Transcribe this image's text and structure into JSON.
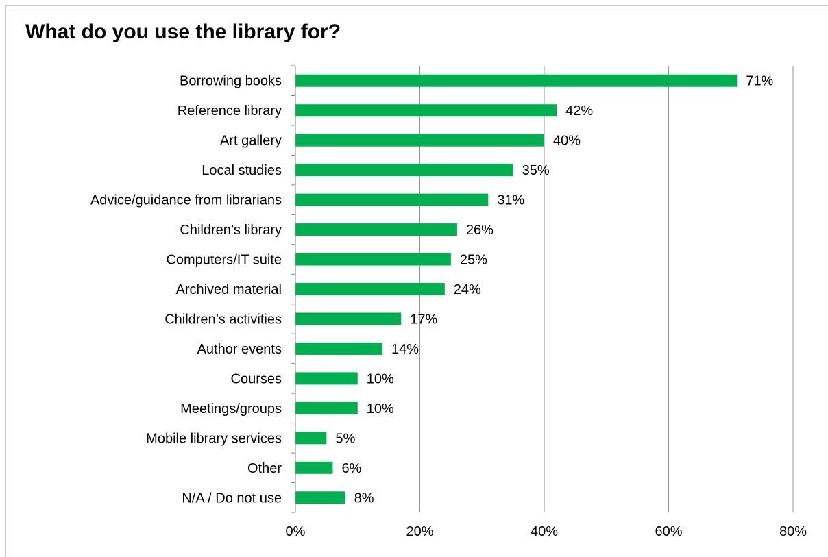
{
  "chart_data": {
    "type": "bar",
    "orientation": "horizontal",
    "title": "What do you use the library for?",
    "categories": [
      "Borrowing books",
      "Reference library",
      "Art gallery",
      "Local studies",
      "Advice/guidance from librarians",
      "Children’s library",
      "Computers/IT suite",
      "Archived material",
      "Children’s activities",
      "Author events",
      "Courses",
      "Meetings/groups",
      "Mobile library services",
      "Other",
      "N/A / Do not use"
    ],
    "values": [
      71,
      42,
      40,
      35,
      31,
      26,
      25,
      24,
      17,
      14,
      10,
      10,
      5,
      6,
      8
    ],
    "data_labels": [
      "71%",
      "42%",
      "40%",
      "35%",
      "31%",
      "26%",
      "25%",
      "24%",
      "17%",
      "14%",
      "10%",
      "10%",
      "5%",
      "6%",
      "8%"
    ],
    "xlim": [
      0,
      80
    ],
    "x_ticks": [
      0,
      20,
      40,
      60,
      80
    ],
    "x_tick_labels": [
      "0%",
      "20%",
      "40%",
      "60%",
      "80%"
    ],
    "xlabel": "",
    "ylabel": "",
    "grid": "vertical",
    "legend": "none",
    "bar_color": "#00b050"
  }
}
